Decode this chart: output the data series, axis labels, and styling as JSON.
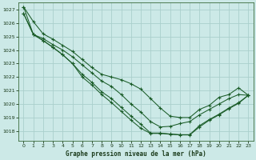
{
  "xlabel": "Graphe pression niveau de la mer (hPa)",
  "xlim": [
    -0.5,
    23.5
  ],
  "ylim": [
    1017.3,
    1027.5
  ],
  "yticks": [
    1018,
    1019,
    1020,
    1021,
    1022,
    1023,
    1024,
    1025,
    1026,
    1027
  ],
  "xticks": [
    0,
    1,
    2,
    3,
    4,
    5,
    6,
    7,
    8,
    9,
    10,
    11,
    12,
    13,
    14,
    15,
    16,
    17,
    18,
    19,
    20,
    21,
    22,
    23
  ],
  "bg_color": "#cce9e7",
  "grid_color": "#aacfcc",
  "line_color": "#1a5c28",
  "marker": "+",
  "lines": [
    [
      1027.2,
      1026.1,
      1025.2,
      1024.8,
      1024.35,
      1023.9,
      1023.3,
      1022.7,
      1022.2,
      1022.0,
      1021.8,
      1021.5,
      1021.1,
      1020.4,
      1019.7,
      1019.1,
      1019.0,
      1019.0,
      1019.6,
      1019.9,
      1020.5,
      1020.7,
      1021.2,
      1020.65
    ],
    [
      1027.2,
      1025.15,
      1024.85,
      1024.4,
      1024.0,
      1023.5,
      1022.9,
      1022.3,
      1021.7,
      1021.3,
      1020.7,
      1020.0,
      1019.4,
      1018.7,
      1018.3,
      1018.35,
      1018.55,
      1018.7,
      1019.2,
      1019.6,
      1020.0,
      1020.4,
      1020.7,
      1020.65
    ],
    [
      1026.7,
      1025.15,
      1024.7,
      1024.2,
      1023.65,
      1023.0,
      1022.2,
      1021.6,
      1020.9,
      1020.4,
      1019.75,
      1019.1,
      1018.5,
      1017.85,
      1017.85,
      1017.78,
      1017.73,
      1017.73,
      1018.4,
      1018.85,
      1019.25,
      1019.7,
      1020.1,
      1020.65
    ],
    [
      1026.7,
      1025.15,
      1024.7,
      1024.2,
      1023.65,
      1023.0,
      1022.0,
      1021.4,
      1020.7,
      1020.1,
      1019.45,
      1018.8,
      1018.2,
      1017.82,
      1017.82,
      1017.76,
      1017.71,
      1017.71,
      1018.3,
      1018.8,
      1019.2,
      1019.65,
      1020.05,
      1020.65
    ]
  ]
}
